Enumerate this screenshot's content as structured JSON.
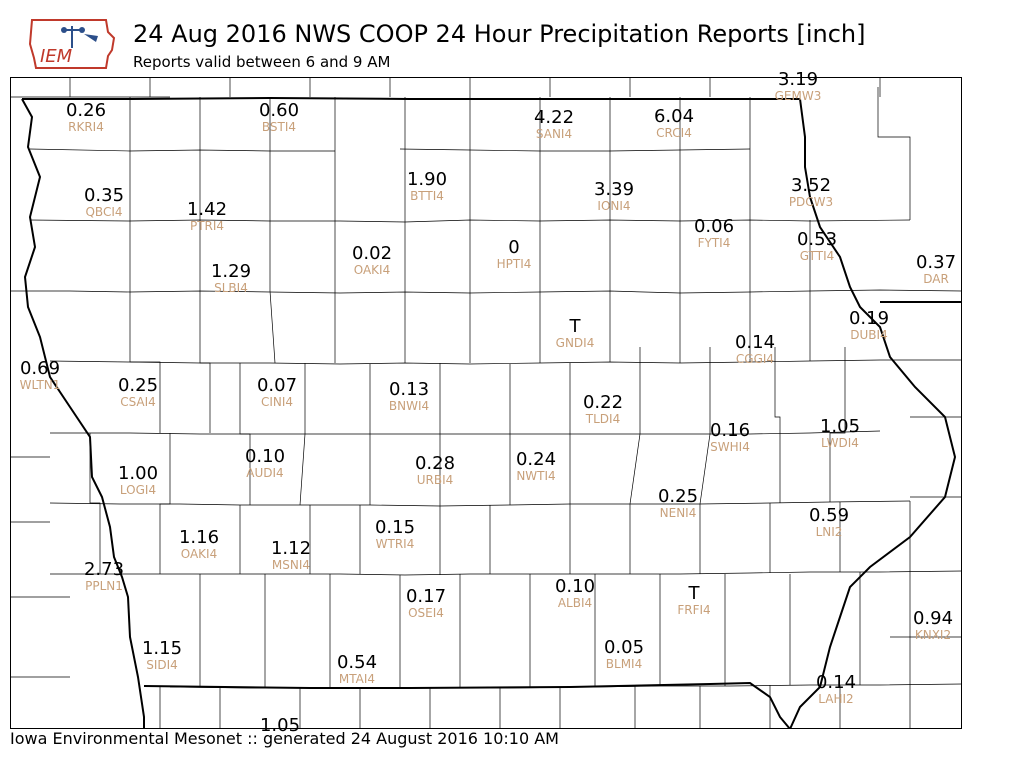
{
  "header": {
    "title": "24 Aug 2016 NWS COOP 24 Hour Precipitation Reports [inch]",
    "subtitle": "Reports valid between 6 and 9 AM"
  },
  "logo": {
    "text": "IEM"
  },
  "footer": {
    "text": "Iowa Environmental Mesonet :: generated 24 August 2016 10:10 AM"
  },
  "colors": {
    "value": "#000000",
    "station": "#c8a07a",
    "logo_red": "#c0392b",
    "logo_blue": "#2c4f8a"
  },
  "stations": [
    {
      "id": "RKRI4",
      "value": "0.26"
    },
    {
      "id": "BSTI4",
      "value": "0.60"
    },
    {
      "id": "SANI4",
      "value": "4.22"
    },
    {
      "id": "CRCI4",
      "value": "6.04"
    },
    {
      "id": "GEMW3",
      "value": "3.19"
    },
    {
      "id": "QBCI4",
      "value": "0.35"
    },
    {
      "id": "BTTI4",
      "value": "1.90"
    },
    {
      "id": "PTRI4",
      "value": "1.42"
    },
    {
      "id": "IONI4",
      "value": "3.39"
    },
    {
      "id": "PDCW3",
      "value": "3.52"
    },
    {
      "id": "FYTI4",
      "value": "0.06"
    },
    {
      "id": "OAKI4",
      "value": "0.02"
    },
    {
      "id": "HPTI4",
      "value": "0"
    },
    {
      "id": "GTTI4",
      "value": "0.53"
    },
    {
      "id": "DAR",
      "value": "0.37"
    },
    {
      "id": "SLBI4",
      "value": "1.29"
    },
    {
      "id": "GNDI4",
      "value": "T"
    },
    {
      "id": "DUBI4",
      "value": "0.19"
    },
    {
      "id": "CGGI4",
      "value": "0.14"
    },
    {
      "id": "WLTN1",
      "value": "0.69"
    },
    {
      "id": "CSAI4",
      "value": "0.25"
    },
    {
      "id": "CINI4",
      "value": "0.07"
    },
    {
      "id": "BNWI4",
      "value": "0.13"
    },
    {
      "id": "TLDI4",
      "value": "0.22"
    },
    {
      "id": "SWHI4",
      "value": "0.16"
    },
    {
      "id": "LWDI4",
      "value": "1.05"
    },
    {
      "id": "AUDI4",
      "value": "0.10"
    },
    {
      "id": "LOGI4",
      "value": "1.00"
    },
    {
      "id": "URBI4",
      "value": "0.28"
    },
    {
      "id": "NWTI4",
      "value": "0.24"
    },
    {
      "id": "NENI4",
      "value": "0.25"
    },
    {
      "id": "LNI2",
      "value": "0.59"
    },
    {
      "id": "OAKI4",
      "value": "1.16"
    },
    {
      "id": "MSNI4",
      "value": "1.12"
    },
    {
      "id": "WTRI4",
      "value": "0.15"
    },
    {
      "id": "PPLN1",
      "value": "2.73"
    },
    {
      "id": "ALBI4",
      "value": "0.10"
    },
    {
      "id": "FRFI4",
      "value": "T"
    },
    {
      "id": "OSEI4",
      "value": "0.17"
    },
    {
      "id": "KNXI2",
      "value": "0.94"
    },
    {
      "id": "SIDI4",
      "value": "1.15"
    },
    {
      "id": "BLMI4",
      "value": "0.05"
    },
    {
      "id": "MTAI4",
      "value": "0.54"
    },
    {
      "id": "LAHI2",
      "value": "0.14"
    },
    {
      "id": "",
      "value": "1.05"
    }
  ]
}
